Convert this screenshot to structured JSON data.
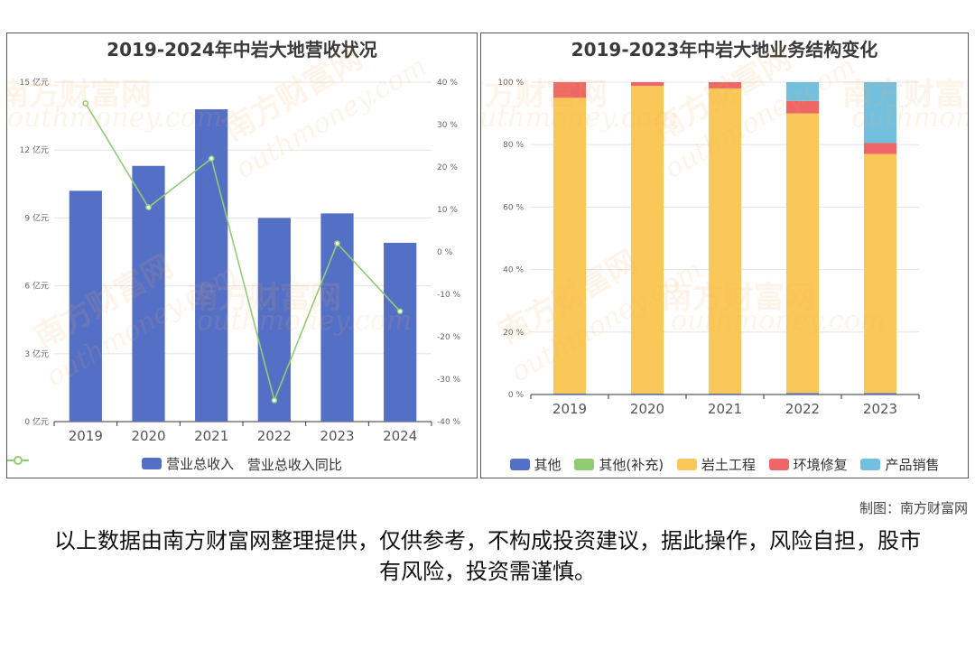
{
  "credit": "制图：南方财富网",
  "disclaimer": "以上数据由南方财富网整理提供，仅供参考，不构成投资建议，据此操作，风险自担，股市有风险，投资需谨慎。",
  "watermark": {
    "cn": "南方财富网",
    "en": "outhmoney.com",
    "color": "#f5aa5a"
  },
  "chart_data": [
    {
      "type": "bar",
      "title": "2019-2024年中岩大地营收状况",
      "categories": [
        "2019",
        "2020",
        "2021",
        "2022",
        "2023",
        "2024"
      ],
      "series": [
        {
          "name": "营业总收入",
          "type": "bar",
          "axis": "left",
          "color": "#5470c6",
          "values": [
            10.2,
            11.3,
            13.8,
            9.0,
            9.2,
            7.9
          ]
        },
        {
          "name": "营业总收入同比",
          "type": "line",
          "axis": "right",
          "color": "#91cc75",
          "values": [
            35,
            10.5,
            22,
            -35,
            2,
            -14
          ]
        }
      ],
      "y_left": {
        "ylim": [
          0,
          15
        ],
        "ticks": [
          0,
          3,
          6,
          9,
          12,
          15
        ],
        "tick_labels": [
          "0 亿元",
          "3 亿元",
          "6 亿元",
          "9 亿元",
          "12 亿元",
          "15 亿元"
        ]
      },
      "y_right": {
        "ylim": [
          -40,
          40
        ],
        "ticks": [
          -40,
          -30,
          -20,
          -10,
          0,
          10,
          20,
          30,
          40
        ],
        "tick_labels": [
          "-40 %",
          "-30 %",
          "-20 %",
          "-10 %",
          "0 %",
          "10 %",
          "20 %",
          "30 %",
          "40 %"
        ]
      },
      "legend": "bottom",
      "grid": true
    },
    {
      "type": "bar",
      "stacked": true,
      "title": "2019-2023年中岩大地业务结构变化",
      "categories": [
        "2019",
        "2020",
        "2021",
        "2022",
        "2023"
      ],
      "series": [
        {
          "name": "其他",
          "color": "#5470c6",
          "values": [
            0.3,
            0.3,
            0.3,
            0.5,
            0.5
          ]
        },
        {
          "name": "其他(补充)",
          "color": "#91cc75",
          "values": [
            0,
            0,
            0,
            0,
            0
          ]
        },
        {
          "name": "岩土工程",
          "color": "#fac858",
          "values": [
            94.7,
            98.5,
            97.7,
            89.5,
            76.5
          ]
        },
        {
          "name": "环境修复",
          "color": "#ee6666",
          "values": [
            5.0,
            1.2,
            2.0,
            4.0,
            3.5
          ]
        },
        {
          "name": "产品销售",
          "color": "#73c0de",
          "values": [
            0,
            0,
            0,
            6.0,
            19.5
          ]
        }
      ],
      "ylim": [
        0,
        100
      ],
      "ticks": [
        0,
        20,
        40,
        60,
        80,
        100
      ],
      "tick_labels": [
        "0 %",
        "20 %",
        "40 %",
        "60 %",
        "80 %",
        "100 %"
      ],
      "legend": "bottom",
      "grid": true
    }
  ]
}
